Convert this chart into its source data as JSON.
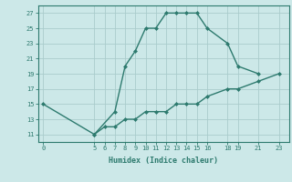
{
  "xlabel": "Humidex (Indice chaleur)",
  "ylabel": "",
  "bg_color": "#cce8e8",
  "grid_color": "#aacccc",
  "line_color": "#2d7a6e",
  "upper_x": [
    0,
    5,
    7,
    8,
    9,
    10,
    11,
    12,
    13,
    14,
    15,
    16,
    18,
    19,
    21
  ],
  "upper_y": [
    15,
    11,
    14,
    20,
    22,
    25,
    25,
    27,
    27,
    27,
    27,
    25,
    23,
    20,
    19
  ],
  "lower_x": [
    5,
    6,
    7,
    8,
    9,
    10,
    11,
    12,
    13,
    14,
    15,
    16,
    18,
    19,
    21,
    23
  ],
  "lower_y": [
    11,
    12,
    12,
    13,
    13,
    14,
    14,
    14,
    15,
    15,
    15,
    16,
    17,
    17,
    18,
    19
  ],
  "xlim": [
    -0.5,
    24
  ],
  "ylim": [
    10,
    28
  ],
  "xticks": [
    0,
    5,
    6,
    7,
    8,
    9,
    10,
    11,
    12,
    13,
    14,
    15,
    16,
    18,
    19,
    21,
    23
  ],
  "yticks": [
    11,
    13,
    15,
    17,
    19,
    21,
    23,
    25,
    27
  ]
}
